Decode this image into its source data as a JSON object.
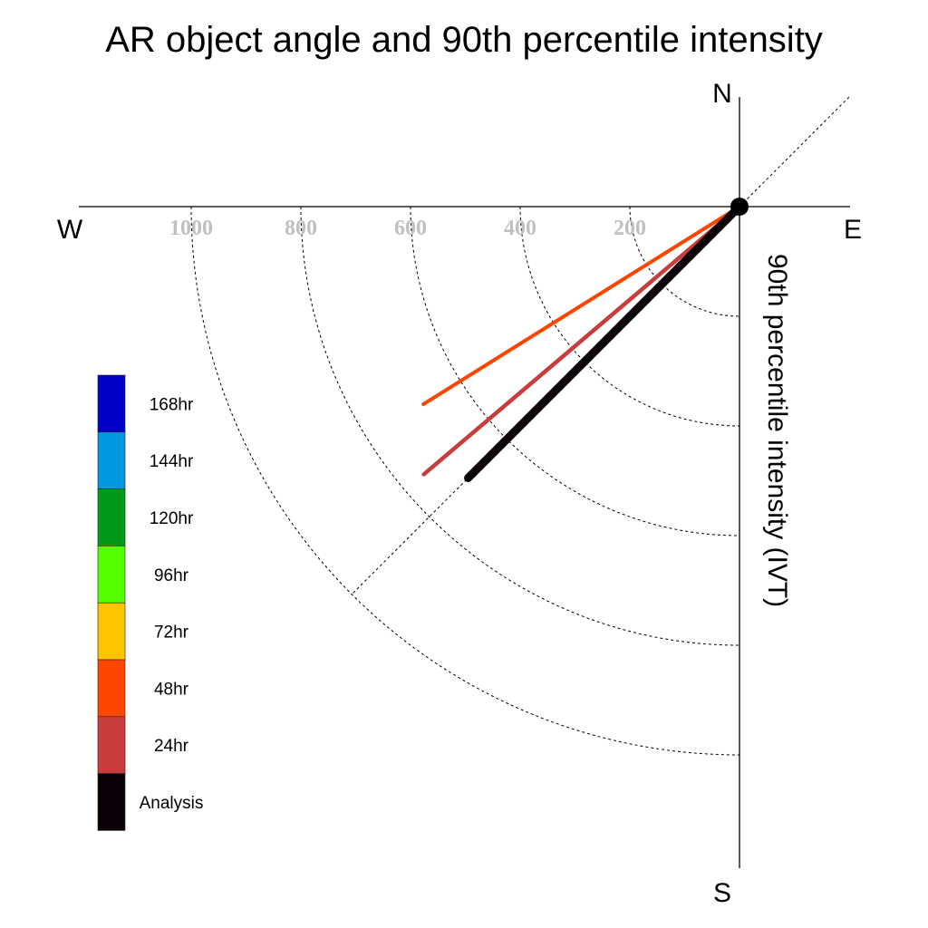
{
  "chart_data": {
    "type": "polar-vector",
    "title": "AR object angle and 90th percentile intensity",
    "radial_label": "90th percentile intensity (IVT)",
    "directions": {
      "north": "N",
      "south": "S",
      "east": "E",
      "west": "W"
    },
    "radial_ticks": [
      200,
      400,
      600,
      800,
      1000
    ],
    "radial_tick_labels": [
      "200",
      "400",
      "600",
      "800",
      "1000"
    ],
    "grid": true,
    "legend_position": "left",
    "legend": [
      {
        "label": "168hr",
        "color": "#0000c8"
      },
      {
        "label": "144hr",
        "color": "#0099e0"
      },
      {
        "label": "120hr",
        "color": "#009a18"
      },
      {
        "label": "96hr",
        "color": "#55ff00"
      },
      {
        "label": "72hr",
        "color": "#ffc400"
      },
      {
        "label": "48hr",
        "color": "#ff4600"
      },
      {
        "label": "24hr",
        "color": "#c83c3c"
      },
      {
        "label": "Analysis",
        "color": "#0a0008"
      }
    ],
    "series": [
      {
        "name": "48hr",
        "color": "#ff4600",
        "direction_deg": 238.0,
        "intensity": 680
      },
      {
        "name": "24hr",
        "color": "#c83c3c",
        "direction_deg": 229.7,
        "intensity": 755
      },
      {
        "name": "72hr",
        "color": "#ffc400",
        "direction_deg": 225.0,
        "intensity": 505
      },
      {
        "name": "Analysis",
        "color": "#0a0008",
        "direction_deg": 225.0,
        "intensity": 700
      }
    ]
  }
}
